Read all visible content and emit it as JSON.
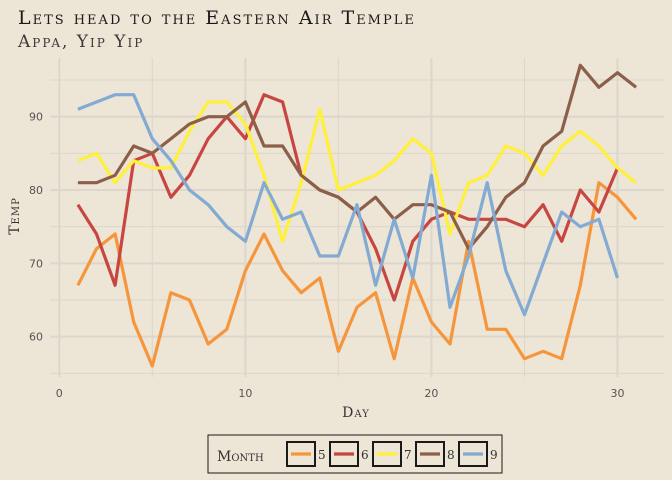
{
  "chart_data": {
    "type": "line",
    "title": "Lets head to the Eastern Air Temple",
    "subtitle": "Appa, Yip Yip",
    "xlabel": "Day",
    "ylabel": "Temp",
    "xlim": [
      -0.5,
      32.5
    ],
    "ylim": [
      54.5,
      98
    ],
    "x_ticks": [
      0,
      10,
      20,
      30
    ],
    "y_ticks": [
      60,
      70,
      80,
      90
    ],
    "grid": true,
    "legend_position": "bottom",
    "legend_title": "Month",
    "series": [
      {
        "name": "5",
        "color": "#f5963c",
        "x": [
          1,
          2,
          3,
          4,
          5,
          6,
          7,
          8,
          9,
          10,
          11,
          12,
          13,
          14,
          15,
          16,
          17,
          18,
          19,
          20,
          21,
          22,
          23,
          24,
          25,
          26,
          27,
          28,
          29,
          30,
          31
        ],
        "values": [
          67,
          72,
          74,
          62,
          56,
          66,
          65,
          59,
          61,
          69,
          74,
          69,
          66,
          68,
          58,
          64,
          66,
          57,
          68,
          62,
          59,
          73,
          61,
          61,
          57,
          58,
          57,
          67,
          81,
          79,
          76
        ]
      },
      {
        "name": "6",
        "color": "#c84641",
        "x": [
          1,
          2,
          3,
          4,
          5,
          6,
          7,
          8,
          9,
          10,
          11,
          12,
          13,
          14,
          15,
          16,
          17,
          18,
          19,
          20,
          21,
          22,
          23,
          24,
          25,
          26,
          27,
          28,
          29,
          30
        ],
        "values": [
          78,
          74,
          67,
          84,
          85,
          79,
          82,
          87,
          90,
          87,
          93,
          92,
          82,
          80,
          79,
          77,
          72,
          65,
          73,
          76,
          77,
          76,
          76,
          76,
          75,
          78,
          73,
          80,
          77,
          83
        ]
      },
      {
        "name": "7",
        "color": "#fff03c",
        "x": [
          1,
          2,
          3,
          4,
          5,
          6,
          7,
          8,
          9,
          10,
          11,
          12,
          13,
          14,
          15,
          16,
          17,
          18,
          19,
          20,
          21,
          22,
          23,
          24,
          25,
          26,
          27,
          28,
          29,
          30,
          31
        ],
        "values": [
          84,
          85,
          81,
          84,
          83,
          83,
          88,
          92,
          92,
          89,
          82,
          73,
          81,
          91,
          80,
          81,
          82,
          84,
          87,
          85,
          74,
          81,
          82,
          86,
          85,
          82,
          86,
          88,
          86,
          83,
          81
        ]
      },
      {
        "name": "8",
        "color": "#8c5f4b",
        "x": [
          1,
          2,
          3,
          4,
          5,
          6,
          7,
          8,
          9,
          10,
          11,
          12,
          13,
          14,
          15,
          16,
          17,
          18,
          19,
          20,
          21,
          22,
          23,
          24,
          25,
          26,
          27,
          28,
          29,
          30,
          31
        ],
        "values": [
          81,
          81,
          82,
          86,
          85,
          87,
          89,
          90,
          90,
          92,
          86,
          86,
          82,
          80,
          79,
          77,
          79,
          76,
          78,
          78,
          77,
          72,
          75,
          79,
          81,
          86,
          88,
          97,
          94,
          96,
          94
        ]
      },
      {
        "name": "9",
        "color": "#82aad2",
        "x": [
          1,
          2,
          3,
          4,
          5,
          6,
          7,
          8,
          9,
          10,
          11,
          12,
          13,
          14,
          15,
          16,
          17,
          18,
          19,
          20,
          21,
          22,
          23,
          24,
          25,
          26,
          27,
          28,
          29,
          30
        ],
        "values": [
          91,
          92,
          93,
          93,
          87,
          84,
          80,
          78,
          75,
          73,
          81,
          76,
          77,
          71,
          71,
          78,
          67,
          76,
          68,
          82,
          64,
          71,
          81,
          69,
          63,
          70,
          77,
          75,
          76,
          68
        ]
      }
    ]
  }
}
